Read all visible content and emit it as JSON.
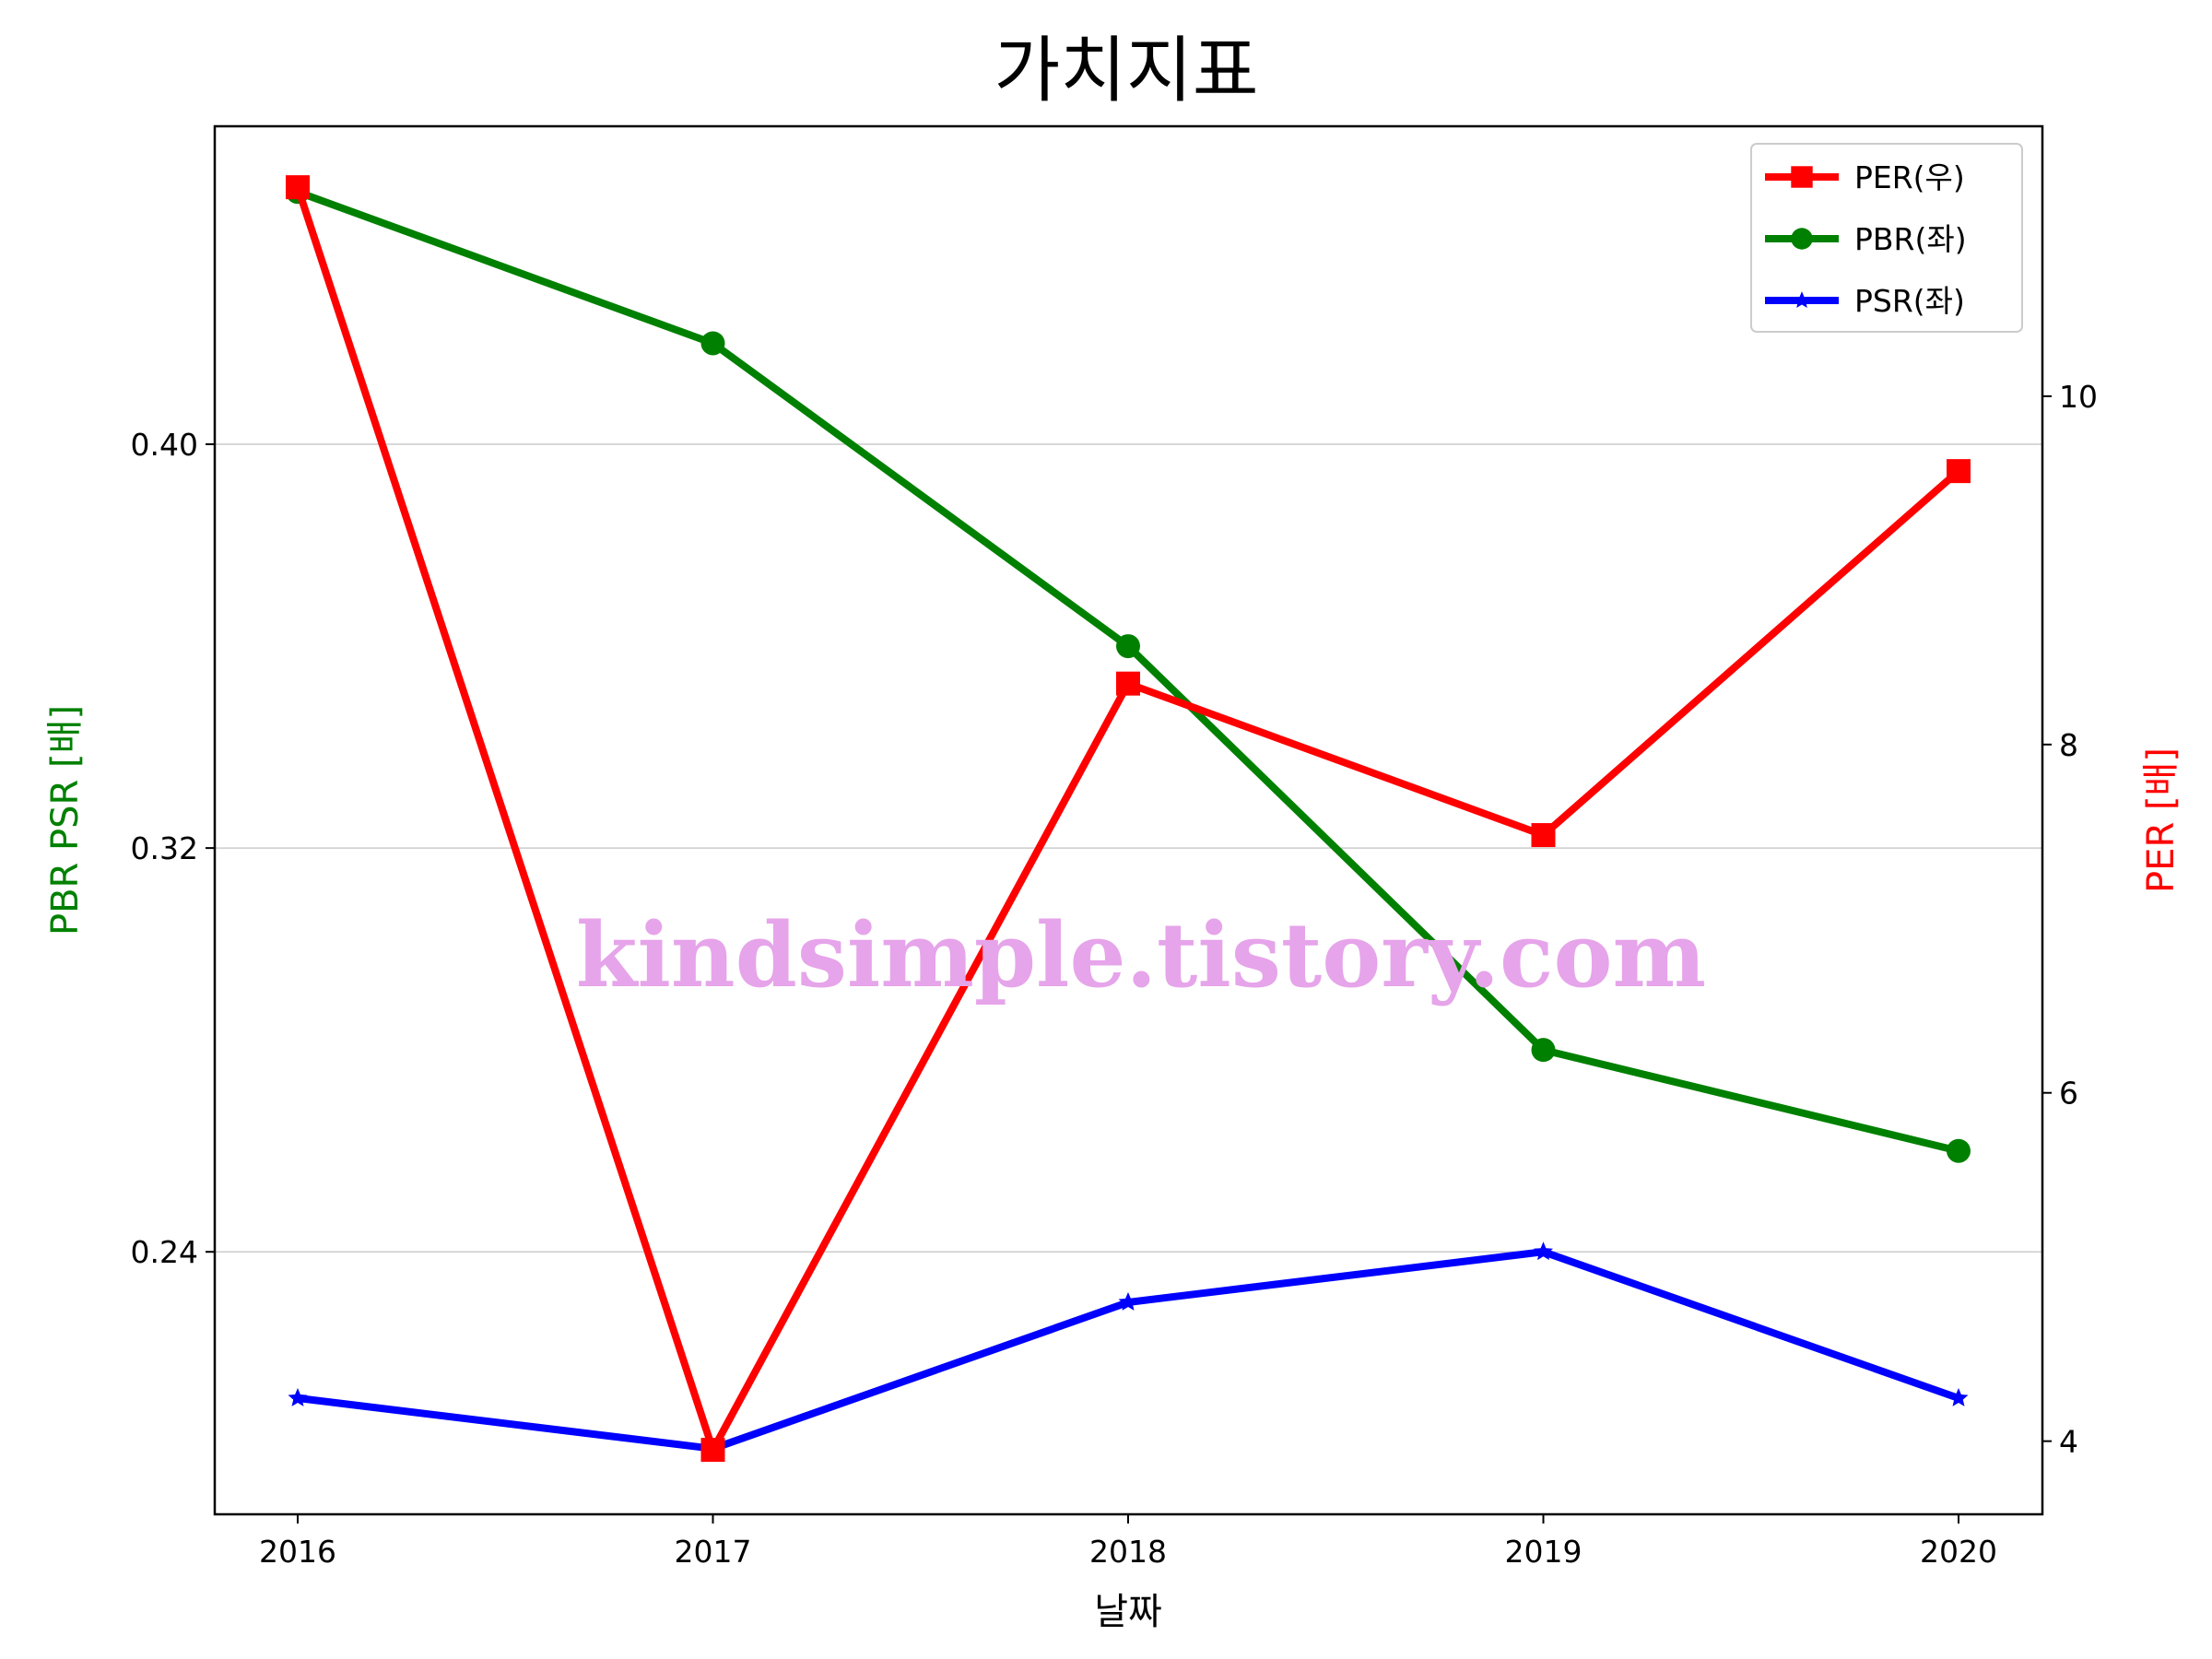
{
  "chart_data": {
    "type": "line",
    "title": "가치지표",
    "xlabel": "날짜",
    "ylabel_left": "PBR PSR [배]",
    "ylabel_right": "PER [배]",
    "categories": [
      "2016",
      "2017",
      "2018",
      "2019",
      "2020"
    ],
    "ylim_left": [
      0.188,
      0.463
    ],
    "ylim_right": [
      3.58,
      11.55
    ],
    "yticks_left": [
      0.24,
      0.32,
      0.4
    ],
    "yticks_left_labels": [
      "0.24",
      "0.32",
      "0.40"
    ],
    "yticks_right": [
      4,
      6,
      8,
      10
    ],
    "yticks_right_labels": [
      "4",
      "6",
      "8",
      "10"
    ],
    "grid": "horizontal-left",
    "legend_position": "top-right",
    "series": [
      {
        "name": "PER(우)",
        "axis": "right",
        "color": "#ff0000",
        "marker": "square",
        "values": [
          11.2,
          3.95,
          8.35,
          7.48,
          9.57
        ]
      },
      {
        "name": "PBR(좌)",
        "axis": "left",
        "color": "#008000",
        "marker": "circle",
        "values": [
          0.45,
          0.42,
          0.36,
          0.28,
          0.26
        ]
      },
      {
        "name": "PSR(좌)",
        "axis": "left",
        "color": "#0000ff",
        "marker": "star",
        "values": [
          0.211,
          0.201,
          0.23,
          0.24,
          0.211
        ]
      }
    ]
  },
  "watermark": "kindsimple.tistory.com"
}
